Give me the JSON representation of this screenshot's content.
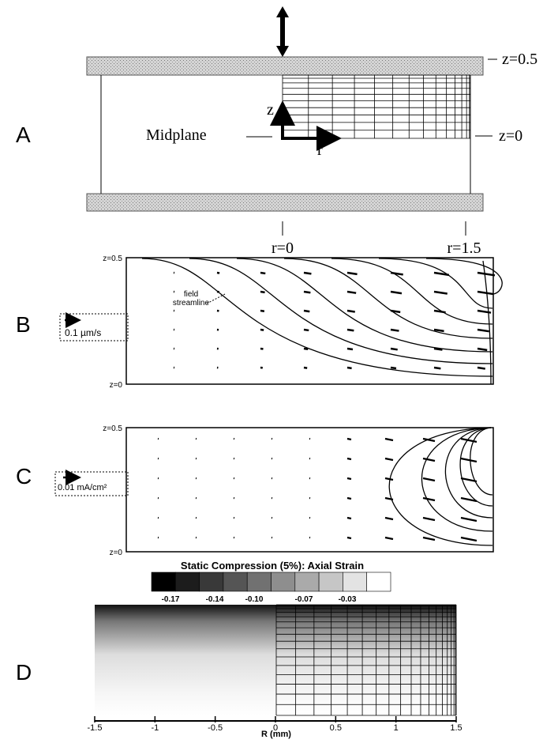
{
  "panel_a": {
    "label": "A",
    "z_top": "z=0.5",
    "z_mid": "z=0",
    "midplane": "Midplane",
    "z_axis": "z",
    "r_axis": "r",
    "r_start": "r=0",
    "r_end": "r=1.5"
  },
  "panel_b": {
    "label": "B",
    "z_top": "z=0.5",
    "z_bottom": "z=0",
    "streamline_label": [
      "field",
      "streamline"
    ],
    "scale_label": "0.1 µm/s"
  },
  "panel_c": {
    "label": "C",
    "z_top": "z=0.5",
    "z_bottom": "z=0",
    "scale_label": "0.01 mA/cm²"
  },
  "panel_d": {
    "label": "D",
    "title": "Static Compression (5%): Axial Strain",
    "colorbar_ticks": [
      "-0.17",
      "-0.14",
      "-0.10",
      "-0.07",
      "-0.03"
    ],
    "xticks": [
      -1.5,
      -1,
      -0.5,
      0,
      0.5,
      1,
      1.5
    ],
    "xlabel": "R (mm)"
  }
}
